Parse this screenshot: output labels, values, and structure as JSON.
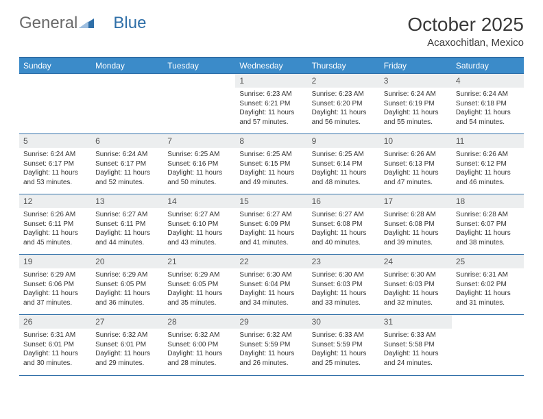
{
  "brand": {
    "part1": "General",
    "part2": "Blue"
  },
  "title": "October 2025",
  "location": "Acaxochitlan, Mexico",
  "colors": {
    "header_bg": "#3b8bc9",
    "header_border": "#2f6fa8",
    "daynum_bg": "#eceeef",
    "text": "#333333",
    "brand_gray": "#6a6a6a",
    "brand_blue": "#2f6fa8"
  },
  "dow": [
    "Sunday",
    "Monday",
    "Tuesday",
    "Wednesday",
    "Thursday",
    "Friday",
    "Saturday"
  ],
  "weeks": [
    [
      {
        "n": "",
        "lines": []
      },
      {
        "n": "",
        "lines": []
      },
      {
        "n": "",
        "lines": []
      },
      {
        "n": "1",
        "lines": [
          "Sunrise: 6:23 AM",
          "Sunset: 6:21 PM",
          "Daylight: 11 hours and 57 minutes."
        ]
      },
      {
        "n": "2",
        "lines": [
          "Sunrise: 6:23 AM",
          "Sunset: 6:20 PM",
          "Daylight: 11 hours and 56 minutes."
        ]
      },
      {
        "n": "3",
        "lines": [
          "Sunrise: 6:24 AM",
          "Sunset: 6:19 PM",
          "Daylight: 11 hours and 55 minutes."
        ]
      },
      {
        "n": "4",
        "lines": [
          "Sunrise: 6:24 AM",
          "Sunset: 6:18 PM",
          "Daylight: 11 hours and 54 minutes."
        ]
      }
    ],
    [
      {
        "n": "5",
        "lines": [
          "Sunrise: 6:24 AM",
          "Sunset: 6:17 PM",
          "Daylight: 11 hours and 53 minutes."
        ]
      },
      {
        "n": "6",
        "lines": [
          "Sunrise: 6:24 AM",
          "Sunset: 6:17 PM",
          "Daylight: 11 hours and 52 minutes."
        ]
      },
      {
        "n": "7",
        "lines": [
          "Sunrise: 6:25 AM",
          "Sunset: 6:16 PM",
          "Daylight: 11 hours and 50 minutes."
        ]
      },
      {
        "n": "8",
        "lines": [
          "Sunrise: 6:25 AM",
          "Sunset: 6:15 PM",
          "Daylight: 11 hours and 49 minutes."
        ]
      },
      {
        "n": "9",
        "lines": [
          "Sunrise: 6:25 AM",
          "Sunset: 6:14 PM",
          "Daylight: 11 hours and 48 minutes."
        ]
      },
      {
        "n": "10",
        "lines": [
          "Sunrise: 6:26 AM",
          "Sunset: 6:13 PM",
          "Daylight: 11 hours and 47 minutes."
        ]
      },
      {
        "n": "11",
        "lines": [
          "Sunrise: 6:26 AM",
          "Sunset: 6:12 PM",
          "Daylight: 11 hours and 46 minutes."
        ]
      }
    ],
    [
      {
        "n": "12",
        "lines": [
          "Sunrise: 6:26 AM",
          "Sunset: 6:11 PM",
          "Daylight: 11 hours and 45 minutes."
        ]
      },
      {
        "n": "13",
        "lines": [
          "Sunrise: 6:27 AM",
          "Sunset: 6:11 PM",
          "Daylight: 11 hours and 44 minutes."
        ]
      },
      {
        "n": "14",
        "lines": [
          "Sunrise: 6:27 AM",
          "Sunset: 6:10 PM",
          "Daylight: 11 hours and 43 minutes."
        ]
      },
      {
        "n": "15",
        "lines": [
          "Sunrise: 6:27 AM",
          "Sunset: 6:09 PM",
          "Daylight: 11 hours and 41 minutes."
        ]
      },
      {
        "n": "16",
        "lines": [
          "Sunrise: 6:27 AM",
          "Sunset: 6:08 PM",
          "Daylight: 11 hours and 40 minutes."
        ]
      },
      {
        "n": "17",
        "lines": [
          "Sunrise: 6:28 AM",
          "Sunset: 6:08 PM",
          "Daylight: 11 hours and 39 minutes."
        ]
      },
      {
        "n": "18",
        "lines": [
          "Sunrise: 6:28 AM",
          "Sunset: 6:07 PM",
          "Daylight: 11 hours and 38 minutes."
        ]
      }
    ],
    [
      {
        "n": "19",
        "lines": [
          "Sunrise: 6:29 AM",
          "Sunset: 6:06 PM",
          "Daylight: 11 hours and 37 minutes."
        ]
      },
      {
        "n": "20",
        "lines": [
          "Sunrise: 6:29 AM",
          "Sunset: 6:05 PM",
          "Daylight: 11 hours and 36 minutes."
        ]
      },
      {
        "n": "21",
        "lines": [
          "Sunrise: 6:29 AM",
          "Sunset: 6:05 PM",
          "Daylight: 11 hours and 35 minutes."
        ]
      },
      {
        "n": "22",
        "lines": [
          "Sunrise: 6:30 AM",
          "Sunset: 6:04 PM",
          "Daylight: 11 hours and 34 minutes."
        ]
      },
      {
        "n": "23",
        "lines": [
          "Sunrise: 6:30 AM",
          "Sunset: 6:03 PM",
          "Daylight: 11 hours and 33 minutes."
        ]
      },
      {
        "n": "24",
        "lines": [
          "Sunrise: 6:30 AM",
          "Sunset: 6:03 PM",
          "Daylight: 11 hours and 32 minutes."
        ]
      },
      {
        "n": "25",
        "lines": [
          "Sunrise: 6:31 AM",
          "Sunset: 6:02 PM",
          "Daylight: 11 hours and 31 minutes."
        ]
      }
    ],
    [
      {
        "n": "26",
        "lines": [
          "Sunrise: 6:31 AM",
          "Sunset: 6:01 PM",
          "Daylight: 11 hours and 30 minutes."
        ]
      },
      {
        "n": "27",
        "lines": [
          "Sunrise: 6:32 AM",
          "Sunset: 6:01 PM",
          "Daylight: 11 hours and 29 minutes."
        ]
      },
      {
        "n": "28",
        "lines": [
          "Sunrise: 6:32 AM",
          "Sunset: 6:00 PM",
          "Daylight: 11 hours and 28 minutes."
        ]
      },
      {
        "n": "29",
        "lines": [
          "Sunrise: 6:32 AM",
          "Sunset: 5:59 PM",
          "Daylight: 11 hours and 26 minutes."
        ]
      },
      {
        "n": "30",
        "lines": [
          "Sunrise: 6:33 AM",
          "Sunset: 5:59 PM",
          "Daylight: 11 hours and 25 minutes."
        ]
      },
      {
        "n": "31",
        "lines": [
          "Sunrise: 6:33 AM",
          "Sunset: 5:58 PM",
          "Daylight: 11 hours and 24 minutes."
        ]
      },
      {
        "n": "",
        "lines": []
      }
    ]
  ]
}
